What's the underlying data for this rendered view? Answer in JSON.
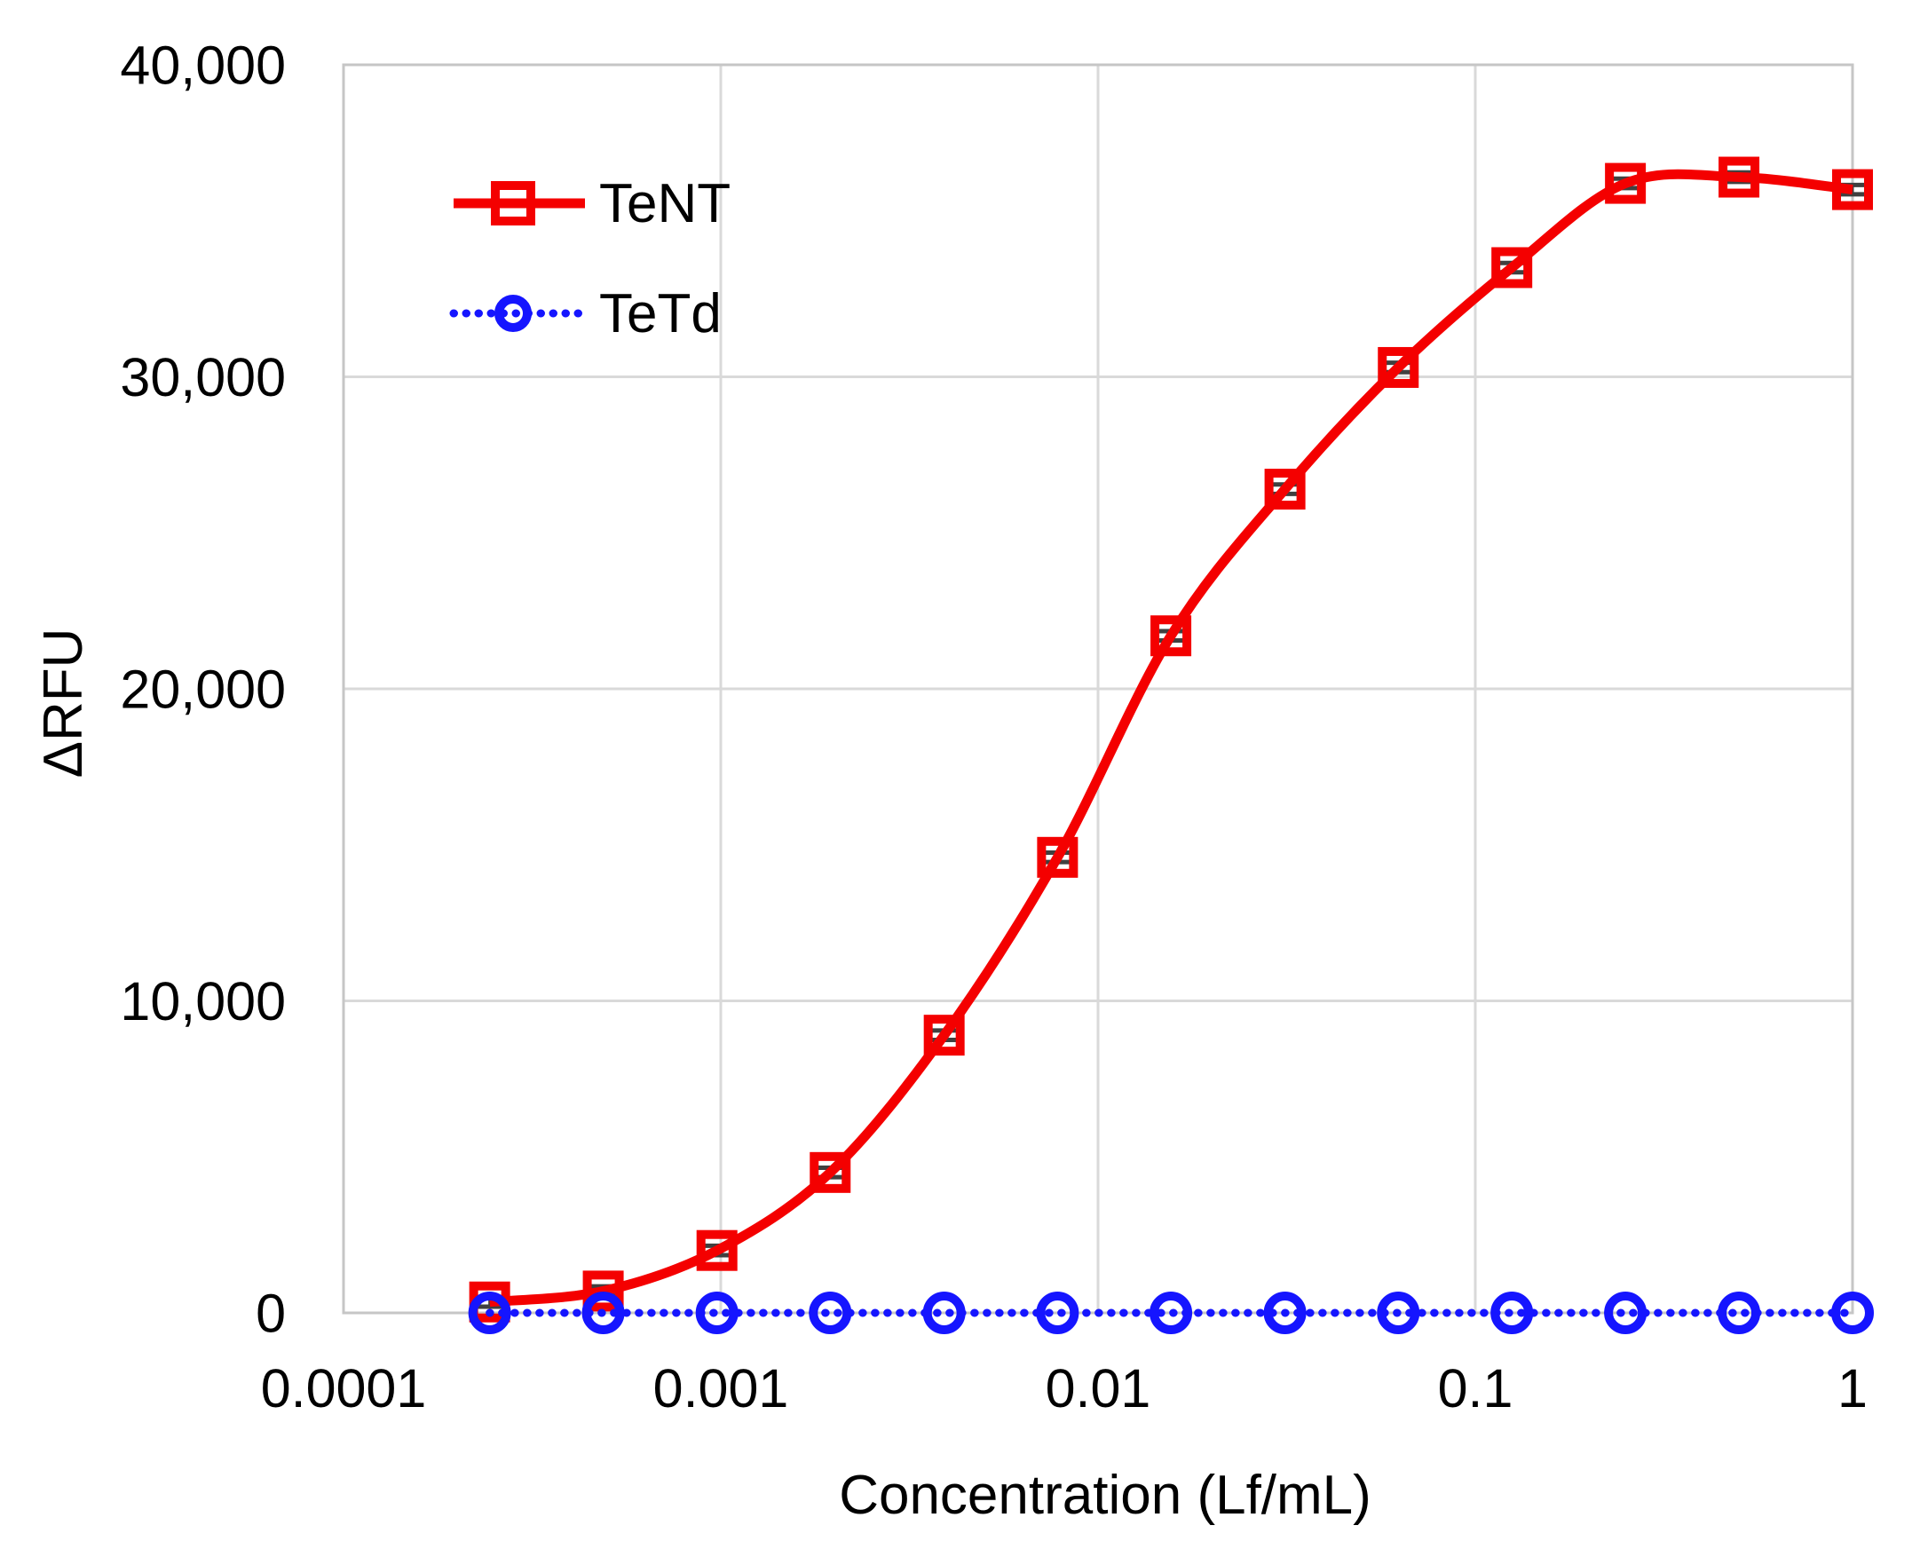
{
  "figure": {
    "background": "#ffffff",
    "text_color": "#000000",
    "grid_color": "#d9d9d9",
    "frame_color": "#c6c6c6",
    "error_bar_color": "#404040"
  },
  "chart_data": {
    "type": "line",
    "title": "",
    "xlabel": "Concentration (Lf/mL)",
    "ylabel": "ΔRFU",
    "x_scale": "log10",
    "xlim": [
      0.0001,
      1
    ],
    "ylim": [
      0,
      40000
    ],
    "grid": true,
    "legend_position": "inside-top-left",
    "x_tick_values": [
      0.0001,
      0.001,
      0.01,
      0.1,
      1
    ],
    "x_tick_labels": [
      "0.0001",
      "0.001",
      "0.01",
      "0.1",
      "1"
    ],
    "y_tick_values": [
      0,
      10000,
      20000,
      30000,
      40000
    ],
    "y_tick_labels": [
      "0",
      "10,000",
      "20,000",
      "30,000",
      "40,000"
    ],
    "x": [
      0.000244,
      0.000488,
      0.000977,
      0.00195,
      0.00391,
      0.00781,
      0.0156,
      0.0313,
      0.0625,
      0.125,
      0.25,
      0.5,
      1
    ],
    "series": [
      {
        "name": "TeNT",
        "color": "#f40000",
        "marker": "open-square",
        "line_style": "solid",
        "values": [
          350,
          700,
          2000,
          4500,
          8900,
          14600,
          21700,
          26400,
          30300,
          33500,
          36200,
          36400,
          36000
        ],
        "error": 150
      },
      {
        "name": "TeTd",
        "color": "#1515ff",
        "marker": "open-circle",
        "line_style": "dotted",
        "values": [
          0,
          0,
          0,
          0,
          0,
          0,
          0,
          0,
          0,
          0,
          0,
          0,
          0
        ],
        "error": 0
      }
    ]
  }
}
